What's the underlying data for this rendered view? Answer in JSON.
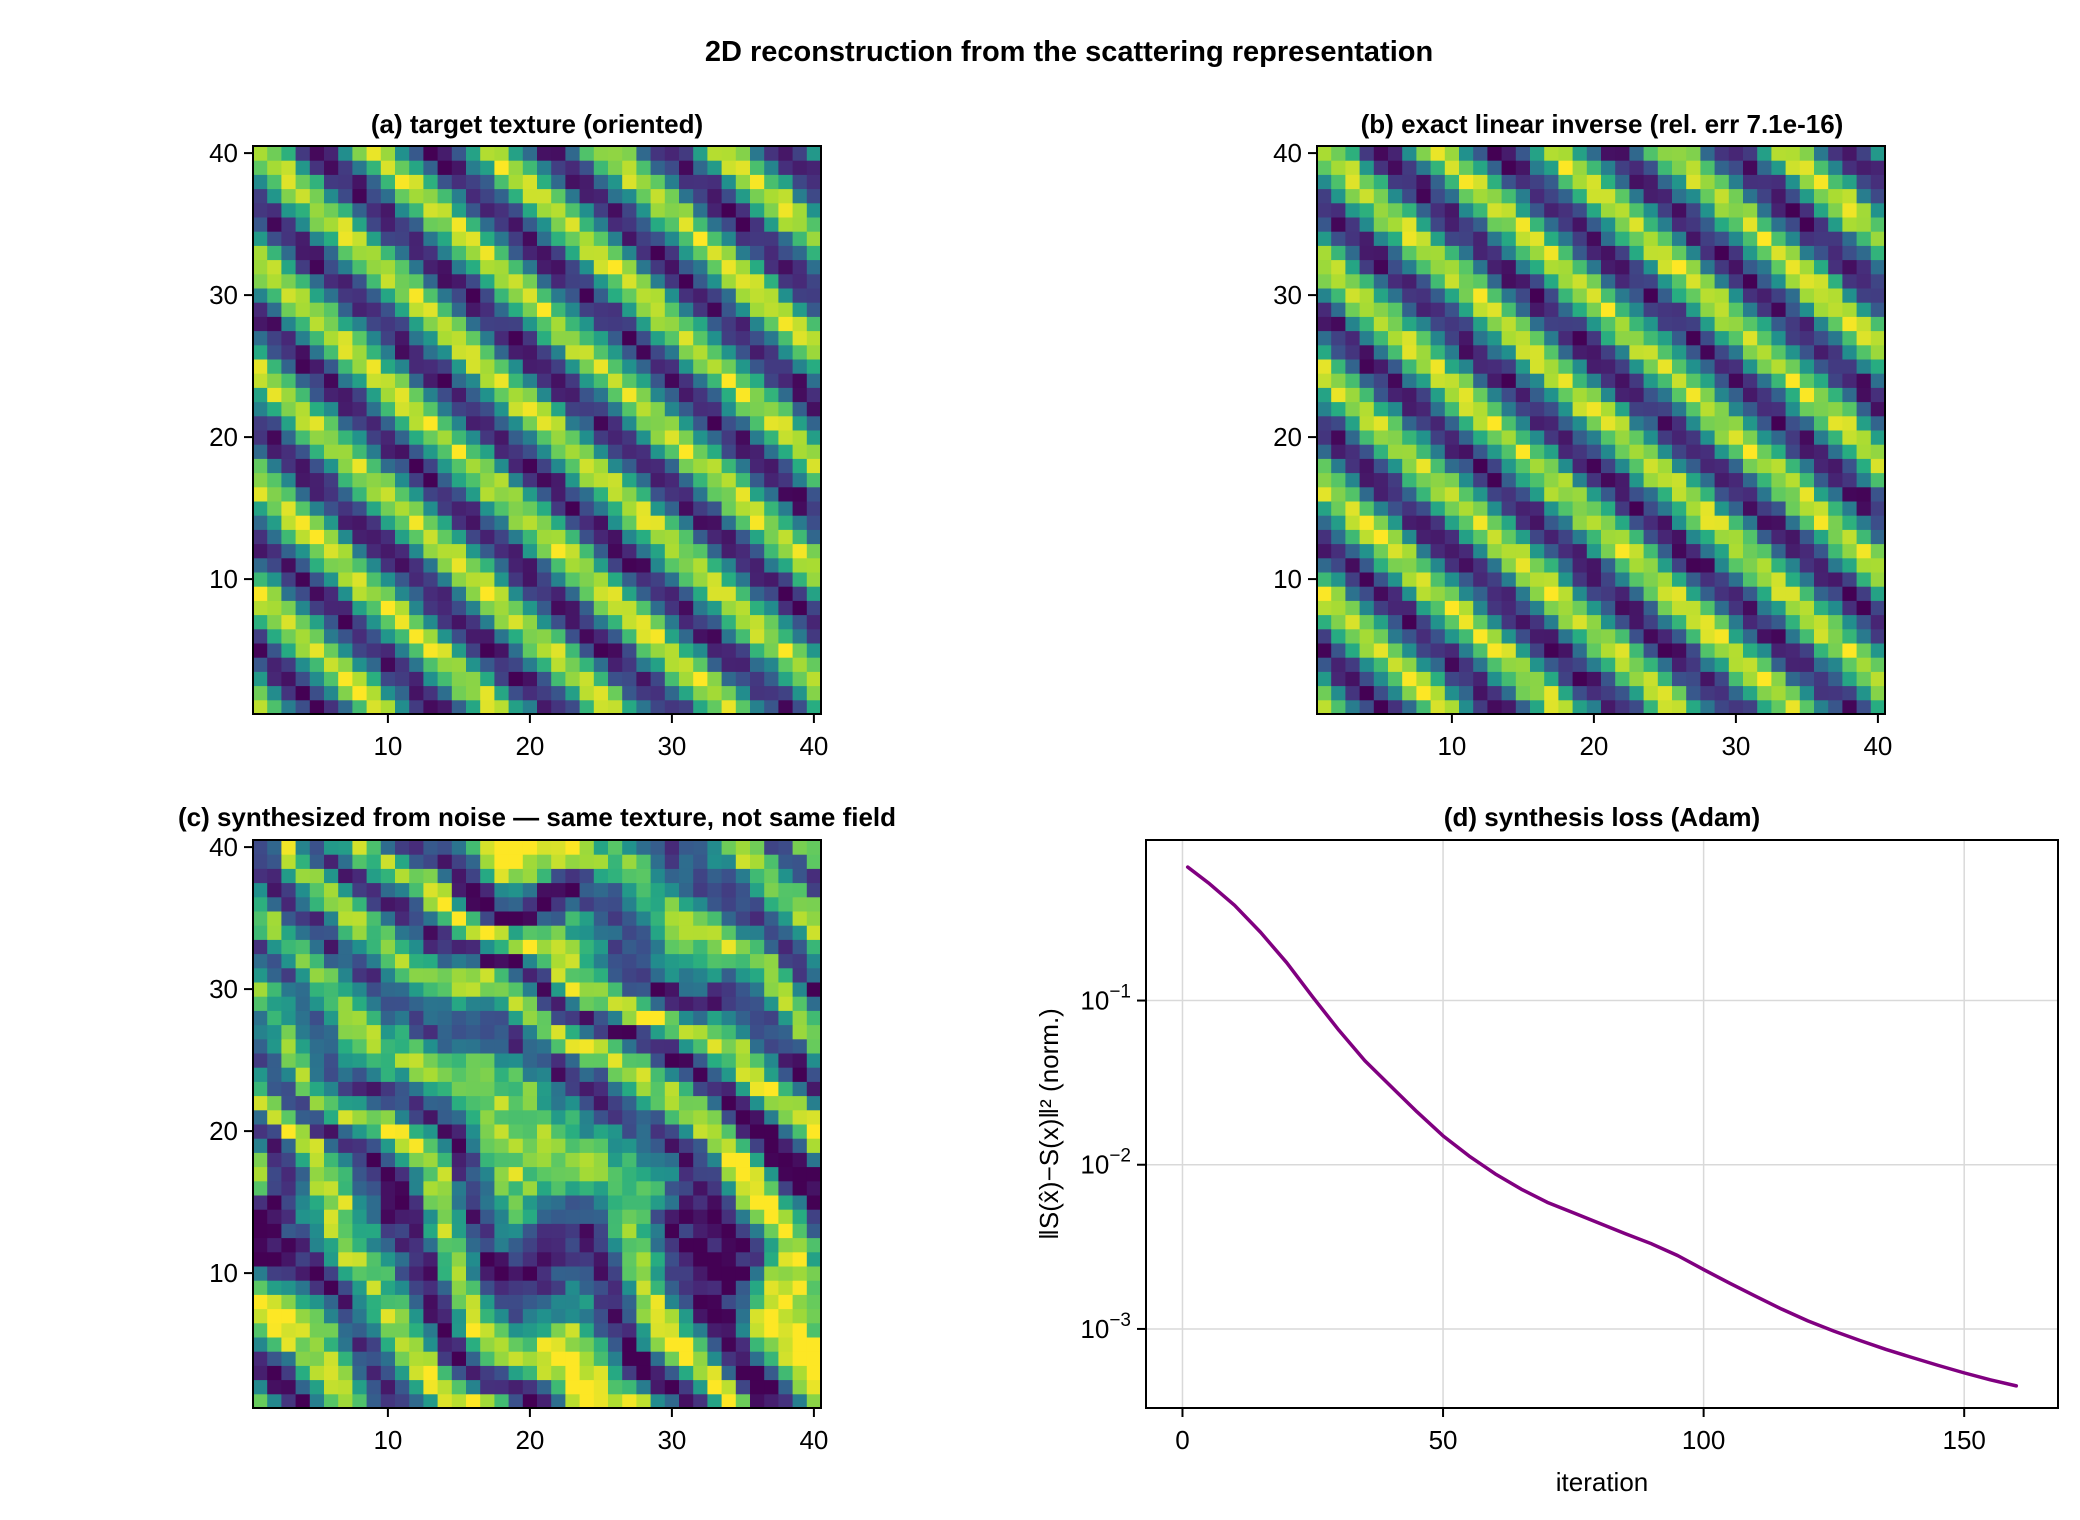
{
  "suptitle": "2D reconstruction from the scattering representation",
  "colors": {
    "loss_line": "#800080",
    "colormap": "viridis",
    "grid": "#d9d9d9"
  },
  "chart_data": [
    {
      "id": "a",
      "type": "heatmap",
      "title": "(a) target texture (oriented)",
      "grid_size": [
        40,
        40
      ],
      "xlim": [
        0.5,
        40.5
      ],
      "ylim": [
        0.5,
        40.5
      ],
      "xticks": [
        10,
        20,
        30,
        40
      ],
      "yticks": [
        10,
        20,
        30,
        40
      ],
      "xtick_labels": [
        "10",
        "20",
        "30",
        "40"
      ],
      "ytick_labels": [
        "10",
        "20",
        "30",
        "40"
      ],
      "colormap": "viridis",
      "pattern": "diagonal stripes, wavelength ~8 cells, descending to the right"
    },
    {
      "id": "b",
      "type": "heatmap",
      "title": "(b) exact linear inverse  (rel. err 7.1e-16)",
      "grid_size": [
        40,
        40
      ],
      "xlim": [
        0.5,
        40.5
      ],
      "ylim": [
        0.5,
        40.5
      ],
      "xticks": [
        10,
        20,
        30,
        40
      ],
      "yticks": [
        10,
        20,
        30,
        40
      ],
      "xtick_labels": [
        "10",
        "20",
        "30",
        "40"
      ],
      "ytick_labels": [
        "10",
        "20",
        "30",
        "40"
      ],
      "colormap": "viridis",
      "relative_error": 7.1e-16
    },
    {
      "id": "c",
      "type": "heatmap",
      "title": "(c) synthesized from noise — same texture, not same field",
      "grid_size": [
        40,
        40
      ],
      "xlim": [
        0.5,
        40.5
      ],
      "ylim": [
        0.5,
        40.5
      ],
      "xticks": [
        10,
        20,
        30,
        40
      ],
      "yticks": [
        10,
        20,
        30,
        40
      ],
      "xtick_labels": [
        "10",
        "20",
        "30",
        "40"
      ],
      "ytick_labels": [
        "10",
        "20",
        "30",
        "40"
      ],
      "colormap": "viridis"
    },
    {
      "id": "d",
      "type": "line",
      "title": "(d) synthesis loss (Adam)",
      "xlabel": "iteration",
      "ylabel": "‖S(x̂)−S(x)‖² (norm.)",
      "yscale": "log",
      "xlim": [
        -7,
        168
      ],
      "ylim": [
        0.00033,
        0.95
      ],
      "xticks": [
        0,
        50,
        100,
        150
      ],
      "xtick_labels": [
        "0",
        "50",
        "100",
        "150"
      ],
      "yticks": [
        0.001,
        0.01,
        0.1
      ],
      "ytick_base": "10",
      "ytick_exponents": [
        "−3",
        "−2",
        "−1"
      ],
      "grid": true,
      "series": [
        {
          "x": [
            1,
            5,
            10,
            15,
            20,
            25,
            30,
            35,
            40,
            45,
            50,
            55,
            60,
            65,
            70,
            75,
            80,
            85,
            90,
            95,
            100,
            105,
            110,
            115,
            120,
            125,
            130,
            135,
            140,
            145,
            150,
            155,
            160
          ],
          "y": [
            0.65,
            0.52,
            0.38,
            0.26,
            0.17,
            0.105,
            0.066,
            0.043,
            0.03,
            0.021,
            0.015,
            0.0113,
            0.0088,
            0.0071,
            0.0059,
            0.0051,
            0.0044,
            0.0038,
            0.0033,
            0.0028,
            0.0023,
            0.0019,
            0.00158,
            0.00132,
            0.00112,
            0.00097,
            0.00085,
            0.00075,
            0.00067,
            0.0006,
            0.00054,
            0.00049,
            0.00045
          ]
        }
      ]
    }
  ]
}
